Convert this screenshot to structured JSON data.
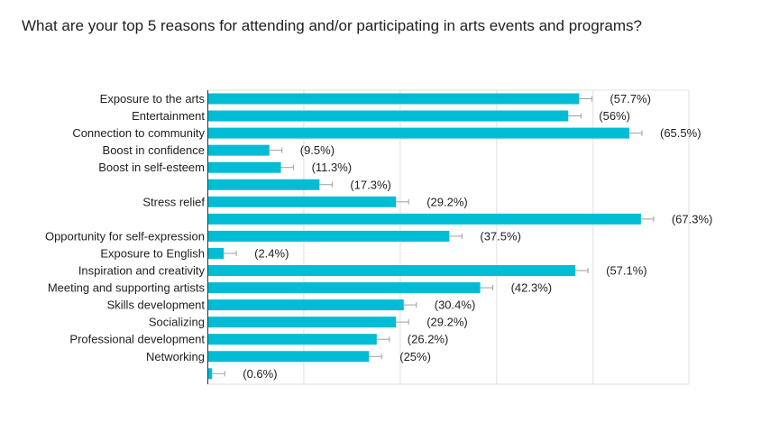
{
  "title": "What are your top 5 reasons for attending and/or participating in arts events and programs?",
  "colors": {
    "bar": "#00bcd4",
    "grid": "#e0e0e0",
    "axis": "#333333",
    "text": "#212121"
  },
  "chart_data": {
    "type": "bar",
    "orientation": "horizontal",
    "title": "What are your top 5 reasons for attending and/or participating in arts events and programs?",
    "xlabel": "",
    "ylabel": "",
    "grid": true,
    "legend": "none",
    "xlim": [
      0,
      100
    ],
    "categories": [
      "Exposure to the arts",
      "Entertainment",
      "Connection to community",
      "Boost in confidence",
      "Boost in self-esteem",
      "",
      "Stress relief",
      "",
      "Opportunity for self-expression",
      "Exposure to English",
      "Inspiration and creativity",
      "Meeting and supporting artists",
      "Skills development",
      "Socializing",
      "Professional development",
      "Networking",
      ""
    ],
    "values": [
      57.7,
      56,
      65.5,
      9.5,
      11.3,
      17.3,
      29.2,
      67.3,
      37.5,
      2.4,
      57.1,
      42.3,
      30.4,
      29.2,
      26.2,
      25,
      0.6
    ],
    "value_labels": [
      "(57.7%)",
      "(56%)",
      "(65.5%)",
      "(9.5%)",
      "(11.3%)",
      "(17.3%)",
      "(29.2%)",
      "(67.3%)",
      "(37.5%)",
      "(2.4%)",
      "(57.1%)",
      "(42.3%)",
      "(30.4%)",
      "(29.2%)",
      "(26.2%)",
      "(25%)",
      "(0.6%)"
    ]
  }
}
